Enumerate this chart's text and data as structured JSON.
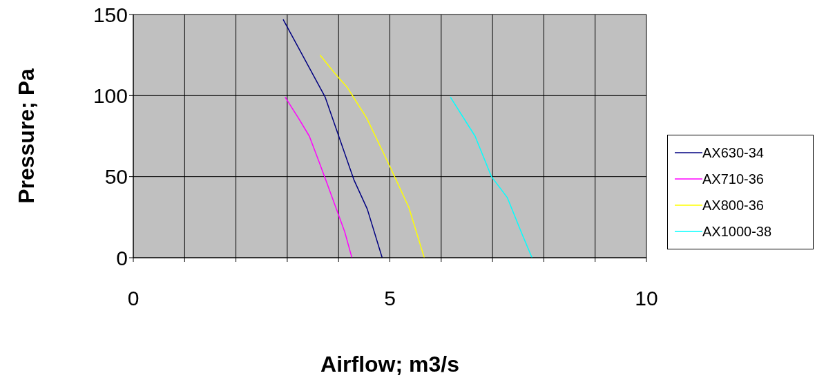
{
  "chart_data": {
    "type": "line",
    "xlabel": "Airflow; m3/s",
    "ylabel": "Pressure; Pa",
    "xlim": [
      0,
      10
    ],
    "xticks": [
      0,
      {
        "value": 1,
        "label": null
      },
      {
        "value": 2,
        "label": null
      },
      {
        "value": 3,
        "label": null
      },
      {
        "value": 4,
        "label": null
      },
      5,
      {
        "value": 6,
        "label": null
      },
      {
        "value": 7,
        "label": null
      },
      {
        "value": 8,
        "label": null
      },
      {
        "value": 9,
        "label": null
      },
      10
    ],
    "ylim": [
      0,
      150
    ],
    "yticks": [
      0,
      50,
      100,
      150
    ],
    "grid": true,
    "legend": "right",
    "marker": "none",
    "line_style": "solid",
    "series": [
      {
        "name": "AX630-34",
        "color": "#000080",
        "x": [
          2.92,
          3.74,
          4.3,
          4.56,
          4.85
        ],
        "values": [
          147,
          99,
          48,
          30,
          0
        ]
      },
      {
        "name": "AX710-36",
        "color": "#ff00ff",
        "x": [
          2.96,
          3.22,
          3.43,
          3.61,
          3.75,
          3.97,
          4.12,
          4.26
        ],
        "values": [
          99,
          86,
          75,
          60,
          48,
          29,
          16,
          0
        ]
      },
      {
        "name": "AX800-36",
        "color": "#ffff00",
        "x": [
          3.64,
          3.92,
          4.17,
          4.55,
          4.99,
          5.37,
          5.67
        ],
        "values": [
          125,
          114,
          105,
          86,
          57,
          31,
          0
        ]
      },
      {
        "name": "AX1000-38",
        "color": "#00ffff",
        "x": [
          6.18,
          6.66,
          6.98,
          7.29,
          7.57,
          7.77
        ],
        "values": [
          99,
          75,
          50,
          37,
          15,
          0
        ]
      }
    ]
  }
}
